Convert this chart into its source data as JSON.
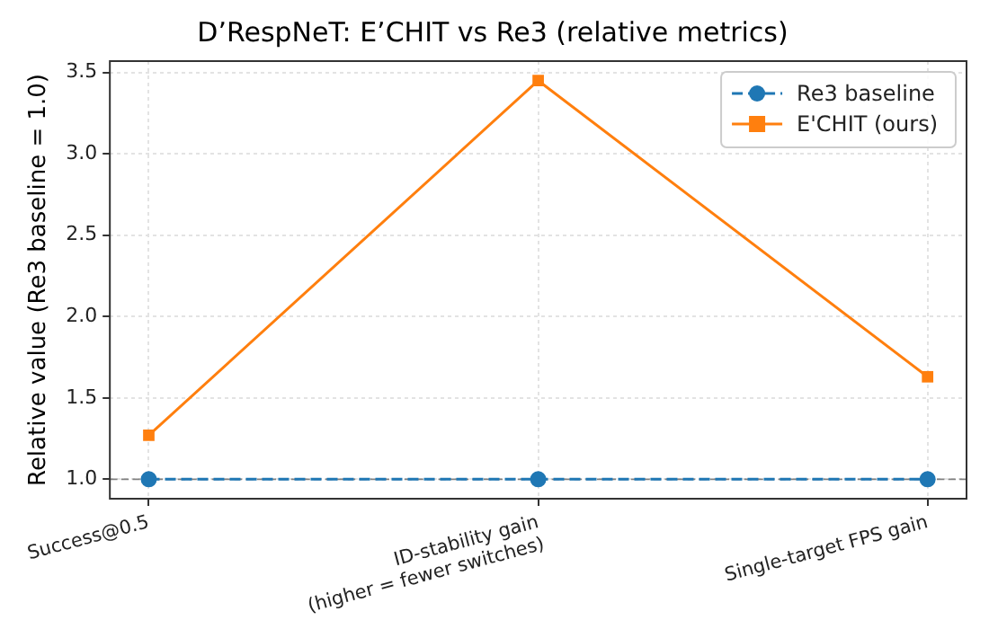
{
  "chart_data": {
    "type": "line",
    "title": "D’RespNeT: E’CHIT vs Re3 (relative metrics)",
    "ylabel": "Relative value (Re3 baseline = 1.0)",
    "categories": [
      "Success@0.5",
      "ID-stability gain\n(higher = fewer switches)",
      "Single-target FPS gain"
    ],
    "series": [
      {
        "name": "Re3 baseline",
        "color": "#1f77b4",
        "values": [
          1.0,
          1.0,
          1.0
        ],
        "marker": "circle",
        "line_style": "dashed"
      },
      {
        "name": "E'CHIT (ours)",
        "color": "#ff7f0e",
        "values": [
          1.27,
          3.45,
          1.63
        ],
        "marker": "square",
        "line_style": "solid"
      }
    ],
    "ylim": [
      0.88,
      3.57
    ],
    "yticks": [
      {
        "value": 1,
        "label": "1.0"
      },
      1.5,
      {
        "value": 2,
        "label": "2.0"
      },
      2.5,
      {
        "value": 3,
        "label": "3.0"
      },
      3.5
    ],
    "ref_lines": [
      {
        "axis": "y",
        "value": 1.0,
        "color": "#808080",
        "line_style": "dashed"
      }
    ],
    "grid": true,
    "legend": "top right"
  }
}
